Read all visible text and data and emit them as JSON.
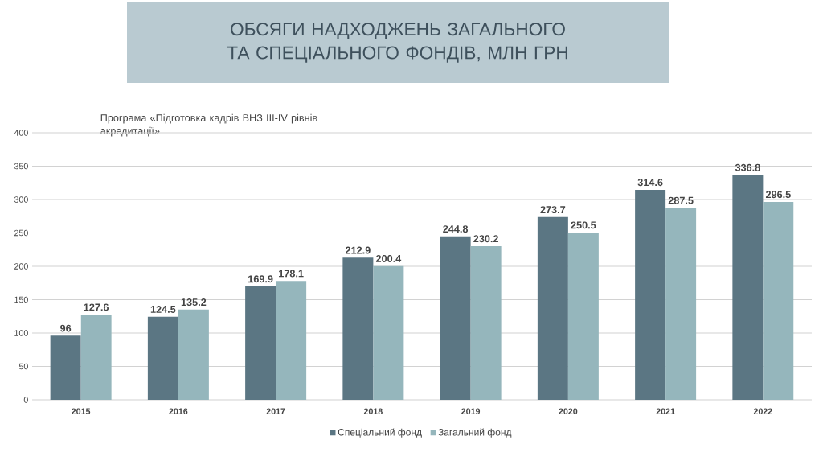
{
  "chart_data": {
    "type": "bar",
    "title": "ОБСЯГИ НАДХОДЖЕНЬ ЗАГАЛЬНОГО ТА СПЕЦІАЛЬНОГО ФОНДІВ, МЛН ГРН",
    "subtitle": "Програма «Підготовка кадрів ВНЗ ІІІ-IV рівнів акредитації»",
    "categories": [
      "2015",
      "2016",
      "2017",
      "2018",
      "2019",
      "2020",
      "2021",
      "2022"
    ],
    "series": [
      {
        "name": "Спеціальний фонд",
        "color": "#5b7683",
        "values": [
          96,
          124.5,
          169.9,
          212.9,
          244.8,
          273.7,
          314.6,
          336.8
        ],
        "value_labels": [
          "96",
          "124.5",
          "169.9",
          "212.9",
          "244.8",
          "273.7",
          "314.6",
          "336.8"
        ]
      },
      {
        "name": "Загальний фонд",
        "color": "#95b6bc",
        "values": [
          127.6,
          135.2,
          178.1,
          200.4,
          230.2,
          250.5,
          287.5,
          296.5
        ],
        "value_labels": [
          "127.6",
          "135.2",
          "178.1",
          "200.4",
          "230.2",
          "250.5",
          "287.5",
          "296.5"
        ]
      }
    ],
    "ylim": [
      0,
      400
    ],
    "yticks": [
      0,
      50,
      100,
      150,
      200,
      250,
      300,
      350,
      400
    ],
    "grid": "y",
    "legend": "bottom"
  }
}
